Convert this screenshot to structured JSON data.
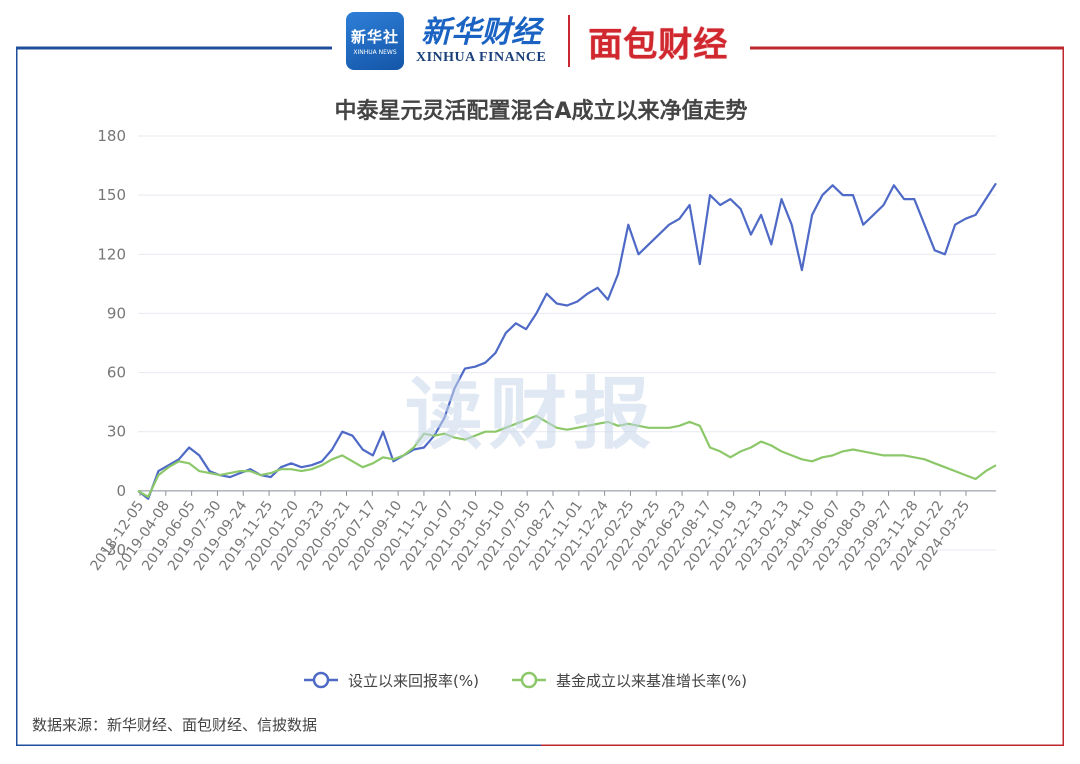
{
  "branding": {
    "xinhua_icon_text": "新华社",
    "xinhua_icon_subtext": "XINHUA NEWS",
    "xinhua_name_cn": "新华财经",
    "xinhua_name_en": "XINHUA FINANCE",
    "mianbao_name": "面包财经",
    "watermark": "读财报",
    "frame_left_color": "#1f4e9c",
    "frame_right_color": "#c0272d"
  },
  "source_text": "数据来源：新华财经、面包财经、信披数据",
  "chart_data": {
    "type": "line",
    "title": "中泰星元灵活配置混合A成立以来净值走势",
    "xlabel": "",
    "ylabel": "",
    "ylim": [
      -30,
      180
    ],
    "yticks": [
      -30,
      0,
      30,
      60,
      90,
      120,
      150,
      180
    ],
    "x_tick_labels": [
      "2018-12-05",
      "2019-04-08",
      "2019-06-05",
      "2019-07-30",
      "2019-09-24",
      "2019-11-25",
      "2020-01-20",
      "2020-03-23",
      "2020-05-21",
      "2020-07-17",
      "2020-09-10",
      "2020-11-12",
      "2021-01-07",
      "2021-03-10",
      "2021-05-10",
      "2021-07-05",
      "2021-08-27",
      "2021-11-01",
      "2021-12-24",
      "2022-02-25",
      "2022-04-25",
      "2022-06-23",
      "2022-08-17",
      "2022-10-19",
      "2022-12-13",
      "2023-02-13",
      "2023-04-10",
      "2023-06-07",
      "2023-08-03",
      "2023-09-27",
      "2023-11-28",
      "2024-01-22",
      "2024-03-25"
    ],
    "grid": true,
    "legend_position": "bottom",
    "series": [
      {
        "name": "设立以来回报率(%)",
        "color": "#4e6ac6",
        "values": [
          0,
          -4,
          10,
          13,
          16,
          22,
          18,
          10,
          8,
          7,
          9,
          11,
          8,
          7,
          12,
          14,
          12,
          13,
          15,
          21,
          30,
          28,
          21,
          18,
          30,
          15,
          18,
          21,
          22,
          28,
          37,
          52,
          62,
          63,
          65,
          70,
          80,
          85,
          82,
          90,
          100,
          95,
          94,
          96,
          100,
          103,
          97,
          110,
          135,
          120,
          125,
          130,
          135,
          138,
          145,
          115,
          150,
          145,
          148,
          143,
          130,
          140,
          125,
          148,
          135,
          112,
          140,
          150,
          155,
          150,
          150,
          135,
          140,
          145,
          155,
          148,
          148,
          135,
          122,
          120,
          135,
          138,
          140,
          148,
          156
        ]
      },
      {
        "name": "基金成立以来基准增长率(%)",
        "color": "#8cc869",
        "values": [
          0,
          -3,
          8,
          12,
          15,
          14,
          10,
          9,
          8,
          9,
          10,
          10,
          8,
          9,
          11,
          11,
          10,
          11,
          13,
          16,
          18,
          15,
          12,
          14,
          17,
          16,
          18,
          22,
          29,
          28,
          29,
          27,
          26,
          28,
          30,
          30,
          32,
          34,
          36,
          38,
          35,
          32,
          31,
          32,
          33,
          34,
          35,
          33,
          34,
          33,
          32,
          32,
          32,
          33,
          35,
          33,
          22,
          20,
          17,
          20,
          22,
          25,
          23,
          20,
          18,
          16,
          15,
          17,
          18,
          20,
          21,
          20,
          19,
          18,
          18,
          18,
          17,
          16,
          14,
          12,
          10,
          8,
          6,
          10,
          13
        ]
      }
    ]
  }
}
